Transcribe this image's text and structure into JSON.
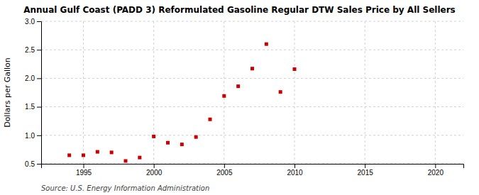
{
  "chart_data": {
    "type": "scatter",
    "title": "Annual Gulf Coast (PADD 3) Reformulated Gasoline Regular DTW Sales Price by All Sellers",
    "y_label": "Dollars per Gallon",
    "annotations": [
      "Source: U.S. Energy Information Administration"
    ],
    "x": [
      1994,
      1995,
      1996,
      1997,
      1998,
      1999,
      2000,
      2001,
      2002,
      2003,
      2004,
      2005,
      2006,
      2007,
      2008,
      2009,
      2010
    ],
    "values": [
      0.65,
      0.65,
      0.71,
      0.7,
      0.55,
      0.61,
      0.98,
      0.87,
      0.84,
      0.97,
      1.28,
      1.69,
      1.86,
      2.17,
      2.6,
      1.76,
      2.16
    ],
    "color": "#cc0000",
    "marker": "square",
    "xlim": [
      1992,
      2022
    ],
    "ylim": [
      0.5,
      3.0
    ],
    "xticks": [
      1995,
      2000,
      2005,
      2010,
      2015,
      2020
    ],
    "yticks": [
      0.5,
      {
        "value": 1,
        "label": "1.0"
      },
      1.5,
      {
        "value": 2,
        "label": "2.0"
      },
      2.5,
      {
        "value": 3,
        "label": "3.0"
      }
    ],
    "grid": true
  }
}
